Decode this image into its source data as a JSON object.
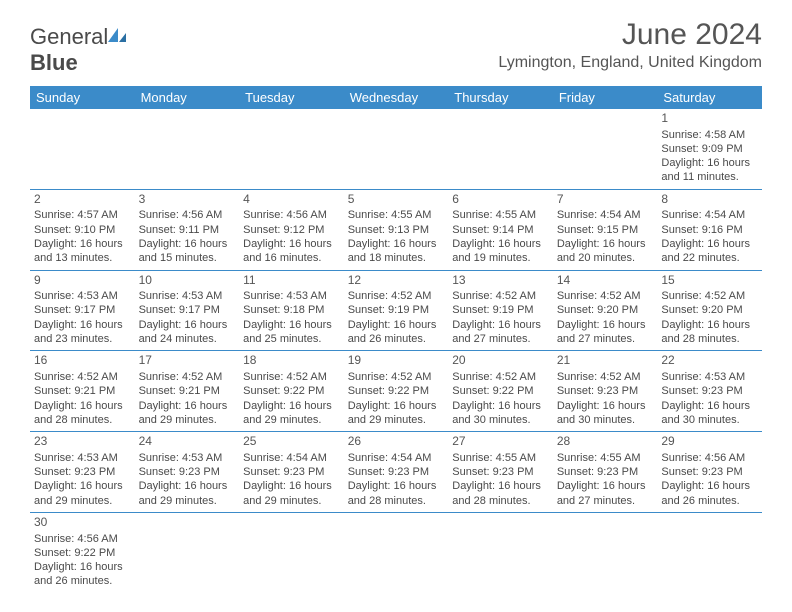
{
  "logo": {
    "part1": "General",
    "part2": "Blue"
  },
  "title": "June 2024",
  "location": "Lymington, England, United Kingdom",
  "colors": {
    "header_bg": "#3b8bc9",
    "header_text": "#ffffff",
    "border": "#3b8bc9",
    "body_text": "#4a4a4a",
    "title_text": "#555555",
    "background": "#ffffff"
  },
  "weekdays": [
    "Sunday",
    "Monday",
    "Tuesday",
    "Wednesday",
    "Thursday",
    "Friday",
    "Saturday"
  ],
  "weeks": [
    [
      null,
      null,
      null,
      null,
      null,
      null,
      {
        "day": "1",
        "sunrise": "Sunrise: 4:58 AM",
        "sunset": "Sunset: 9:09 PM",
        "daylight": "Daylight: 16 hours and 11 minutes."
      }
    ],
    [
      {
        "day": "2",
        "sunrise": "Sunrise: 4:57 AM",
        "sunset": "Sunset: 9:10 PM",
        "daylight": "Daylight: 16 hours and 13 minutes."
      },
      {
        "day": "3",
        "sunrise": "Sunrise: 4:56 AM",
        "sunset": "Sunset: 9:11 PM",
        "daylight": "Daylight: 16 hours and 15 minutes."
      },
      {
        "day": "4",
        "sunrise": "Sunrise: 4:56 AM",
        "sunset": "Sunset: 9:12 PM",
        "daylight": "Daylight: 16 hours and 16 minutes."
      },
      {
        "day": "5",
        "sunrise": "Sunrise: 4:55 AM",
        "sunset": "Sunset: 9:13 PM",
        "daylight": "Daylight: 16 hours and 18 minutes."
      },
      {
        "day": "6",
        "sunrise": "Sunrise: 4:55 AM",
        "sunset": "Sunset: 9:14 PM",
        "daylight": "Daylight: 16 hours and 19 minutes."
      },
      {
        "day": "7",
        "sunrise": "Sunrise: 4:54 AM",
        "sunset": "Sunset: 9:15 PM",
        "daylight": "Daylight: 16 hours and 20 minutes."
      },
      {
        "day": "8",
        "sunrise": "Sunrise: 4:54 AM",
        "sunset": "Sunset: 9:16 PM",
        "daylight": "Daylight: 16 hours and 22 minutes."
      }
    ],
    [
      {
        "day": "9",
        "sunrise": "Sunrise: 4:53 AM",
        "sunset": "Sunset: 9:17 PM",
        "daylight": "Daylight: 16 hours and 23 minutes."
      },
      {
        "day": "10",
        "sunrise": "Sunrise: 4:53 AM",
        "sunset": "Sunset: 9:17 PM",
        "daylight": "Daylight: 16 hours and 24 minutes."
      },
      {
        "day": "11",
        "sunrise": "Sunrise: 4:53 AM",
        "sunset": "Sunset: 9:18 PM",
        "daylight": "Daylight: 16 hours and 25 minutes."
      },
      {
        "day": "12",
        "sunrise": "Sunrise: 4:52 AM",
        "sunset": "Sunset: 9:19 PM",
        "daylight": "Daylight: 16 hours and 26 minutes."
      },
      {
        "day": "13",
        "sunrise": "Sunrise: 4:52 AM",
        "sunset": "Sunset: 9:19 PM",
        "daylight": "Daylight: 16 hours and 27 minutes."
      },
      {
        "day": "14",
        "sunrise": "Sunrise: 4:52 AM",
        "sunset": "Sunset: 9:20 PM",
        "daylight": "Daylight: 16 hours and 27 minutes."
      },
      {
        "day": "15",
        "sunrise": "Sunrise: 4:52 AM",
        "sunset": "Sunset: 9:20 PM",
        "daylight": "Daylight: 16 hours and 28 minutes."
      }
    ],
    [
      {
        "day": "16",
        "sunrise": "Sunrise: 4:52 AM",
        "sunset": "Sunset: 9:21 PM",
        "daylight": "Daylight: 16 hours and 28 minutes."
      },
      {
        "day": "17",
        "sunrise": "Sunrise: 4:52 AM",
        "sunset": "Sunset: 9:21 PM",
        "daylight": "Daylight: 16 hours and 29 minutes."
      },
      {
        "day": "18",
        "sunrise": "Sunrise: 4:52 AM",
        "sunset": "Sunset: 9:22 PM",
        "daylight": "Daylight: 16 hours and 29 minutes."
      },
      {
        "day": "19",
        "sunrise": "Sunrise: 4:52 AM",
        "sunset": "Sunset: 9:22 PM",
        "daylight": "Daylight: 16 hours and 29 minutes."
      },
      {
        "day": "20",
        "sunrise": "Sunrise: 4:52 AM",
        "sunset": "Sunset: 9:22 PM",
        "daylight": "Daylight: 16 hours and 30 minutes."
      },
      {
        "day": "21",
        "sunrise": "Sunrise: 4:52 AM",
        "sunset": "Sunset: 9:23 PM",
        "daylight": "Daylight: 16 hours and 30 minutes."
      },
      {
        "day": "22",
        "sunrise": "Sunrise: 4:53 AM",
        "sunset": "Sunset: 9:23 PM",
        "daylight": "Daylight: 16 hours and 30 minutes."
      }
    ],
    [
      {
        "day": "23",
        "sunrise": "Sunrise: 4:53 AM",
        "sunset": "Sunset: 9:23 PM",
        "daylight": "Daylight: 16 hours and 29 minutes."
      },
      {
        "day": "24",
        "sunrise": "Sunrise: 4:53 AM",
        "sunset": "Sunset: 9:23 PM",
        "daylight": "Daylight: 16 hours and 29 minutes."
      },
      {
        "day": "25",
        "sunrise": "Sunrise: 4:54 AM",
        "sunset": "Sunset: 9:23 PM",
        "daylight": "Daylight: 16 hours and 29 minutes."
      },
      {
        "day": "26",
        "sunrise": "Sunrise: 4:54 AM",
        "sunset": "Sunset: 9:23 PM",
        "daylight": "Daylight: 16 hours and 28 minutes."
      },
      {
        "day": "27",
        "sunrise": "Sunrise: 4:55 AM",
        "sunset": "Sunset: 9:23 PM",
        "daylight": "Daylight: 16 hours and 28 minutes."
      },
      {
        "day": "28",
        "sunrise": "Sunrise: 4:55 AM",
        "sunset": "Sunset: 9:23 PM",
        "daylight": "Daylight: 16 hours and 27 minutes."
      },
      {
        "day": "29",
        "sunrise": "Sunrise: 4:56 AM",
        "sunset": "Sunset: 9:23 PM",
        "daylight": "Daylight: 16 hours and 26 minutes."
      }
    ],
    [
      {
        "day": "30",
        "sunrise": "Sunrise: 4:56 AM",
        "sunset": "Sunset: 9:22 PM",
        "daylight": "Daylight: 16 hours and 26 minutes."
      },
      null,
      null,
      null,
      null,
      null,
      null
    ]
  ]
}
